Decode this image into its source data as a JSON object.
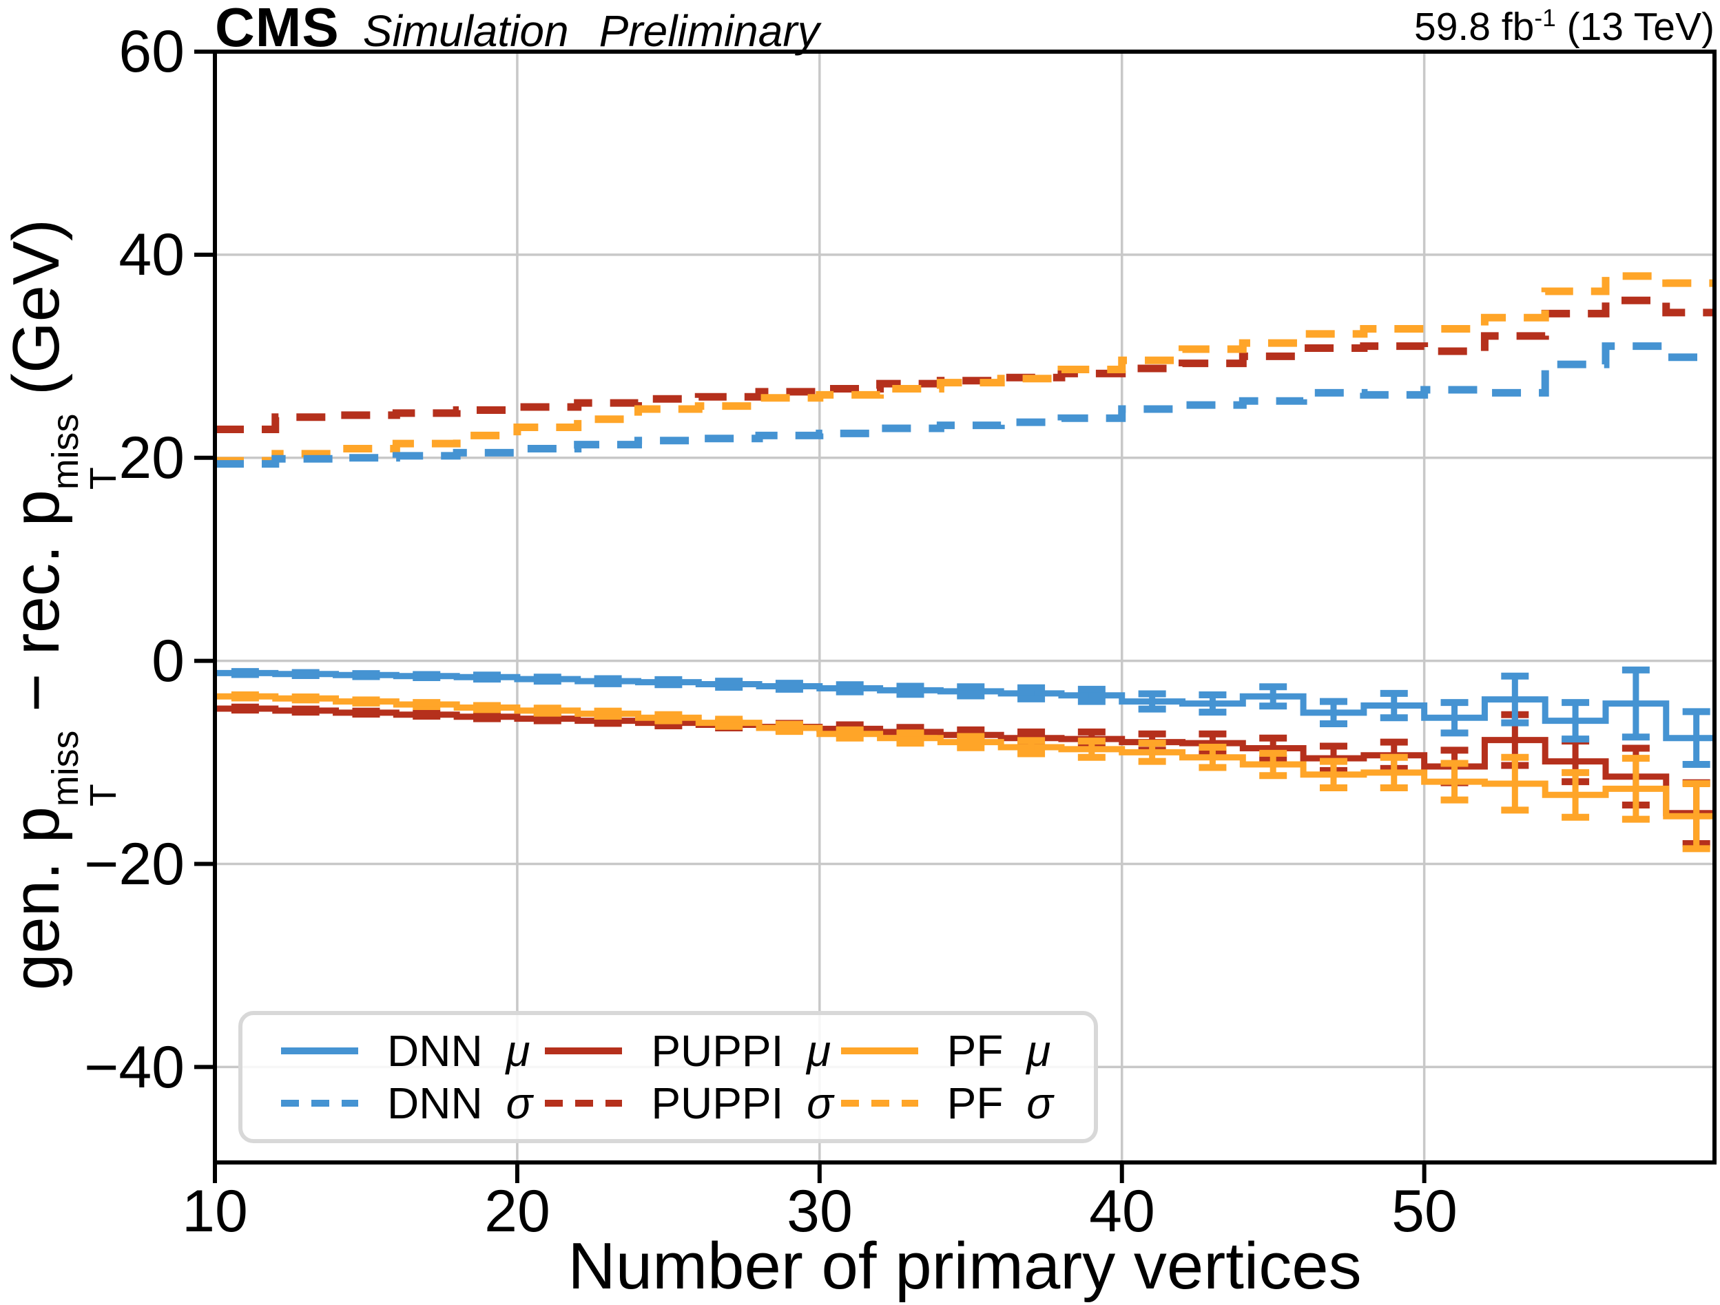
{
  "header": {
    "experiment": "CMS",
    "sim_label": "Simulation",
    "prelim_label": "Preliminary",
    "lumi_text": "59.8 fb",
    "lumi_sup": "-1",
    "energy_text": " (13 TeV)"
  },
  "ylabel_parts": {
    "pre": "gen. p",
    "sup": "miss",
    "sub": "T",
    "mid": " − rec. p",
    "post": " (GeV)"
  },
  "chart_data": {
    "type": "line",
    "subtype": "step-histogram with error bars",
    "title": "CMS Simulation Preliminary",
    "xlabel": "Number of primary vertices",
    "ylabel": "gen. pT_miss − rec. pT_miss (GeV)",
    "xlim": [
      10,
      59.6
    ],
    "ylim": [
      -49.4,
      60
    ],
    "grid": true,
    "x_ticks": [
      10,
      20,
      30,
      40,
      50
    ],
    "y_ticks": [
      60,
      40,
      20,
      0,
      -20,
      -40
    ],
    "x_tick_labels": [
      "10",
      "20",
      "30",
      "40",
      "50"
    ],
    "y_tick_labels": [
      "60",
      "40",
      "20",
      "0",
      "−20",
      "−40"
    ],
    "colors": {
      "blue": "#4593D2",
      "red": "#B5301C",
      "orange": "#FFA528",
      "grid": "#C8C8C8",
      "axis": "#000000"
    },
    "bin_edges": [
      10,
      12,
      14,
      16,
      18,
      20,
      22,
      24,
      26,
      28,
      30,
      32,
      34,
      36,
      38,
      40,
      42,
      44,
      46,
      48,
      50,
      52,
      54,
      56,
      58,
      60
    ],
    "series": [
      {
        "name": "PUPPI σ",
        "color": "#B5301C",
        "style": "dashed",
        "values": [
          22.8,
          24.0,
          24.2,
          24.4,
          24.7,
          25.0,
          25.4,
          25.8,
          26.0,
          26.5,
          26.8,
          27.3,
          27.6,
          27.9,
          28.3,
          28.8,
          29.3,
          30.0,
          30.8,
          31.0,
          30.5,
          32.0,
          34.2,
          35.5,
          34.3
        ]
      },
      {
        "name": "PF σ",
        "color": "#FFA528",
        "style": "dashed",
        "values": [
          19.7,
          20.4,
          20.9,
          21.4,
          22.2,
          23.0,
          23.8,
          24.8,
          25.1,
          25.9,
          26.2,
          26.8,
          27.4,
          27.8,
          28.7,
          29.6,
          30.7,
          31.3,
          32.2,
          32.7,
          32.7,
          33.8,
          36.4,
          37.9,
          37.2
        ]
      },
      {
        "name": "DNN σ",
        "color": "#4593D2",
        "style": "dashed",
        "values": [
          19.4,
          19.9,
          20.0,
          20.2,
          20.5,
          20.9,
          21.3,
          21.7,
          21.9,
          22.2,
          22.4,
          22.9,
          23.2,
          23.5,
          23.9,
          24.8,
          25.2,
          25.6,
          26.4,
          26.2,
          26.7,
          26.4,
          29.2,
          31.0,
          29.9
        ]
      },
      {
        "name": "PUPPI μ",
        "color": "#B5301C",
        "style": "solid",
        "values": [
          -4.7,
          -4.9,
          -5.1,
          -5.3,
          -5.5,
          -5.7,
          -5.9,
          -6.1,
          -6.3,
          -6.5,
          -6.7,
          -7.0,
          -7.3,
          -7.6,
          -7.7,
          -8.0,
          -8.1,
          -8.6,
          -9.6,
          -9.3,
          -10.4,
          -7.8,
          -9.9,
          -11.4,
          -15.0
        ],
        "errors": [
          0.15,
          0.15,
          0.15,
          0.15,
          0.2,
          0.2,
          0.25,
          0.3,
          0.3,
          0.35,
          0.4,
          0.45,
          0.5,
          0.6,
          0.7,
          0.8,
          0.9,
          1.0,
          1.2,
          1.3,
          1.6,
          2.5,
          2.0,
          2.8,
          3.0
        ]
      },
      {
        "name": "PF μ",
        "color": "#FFA528",
        "style": "solid",
        "values": [
          -3.5,
          -3.7,
          -4.0,
          -4.3,
          -4.6,
          -4.9,
          -5.2,
          -5.6,
          -6.1,
          -6.6,
          -7.2,
          -7.6,
          -8.0,
          -8.5,
          -8.7,
          -9.0,
          -9.5,
          -10.2,
          -11.2,
          -11.0,
          -11.9,
          -12.1,
          -13.2,
          -12.6,
          -15.3
        ],
        "errors": [
          0.15,
          0.15,
          0.15,
          0.2,
          0.2,
          0.25,
          0.25,
          0.3,
          0.35,
          0.35,
          0.4,
          0.5,
          0.55,
          0.65,
          0.8,
          0.9,
          1.0,
          1.1,
          1.3,
          1.5,
          1.8,
          2.6,
          2.2,
          3.0,
          3.2
        ]
      },
      {
        "name": "DNN μ",
        "color": "#4593D2",
        "style": "solid",
        "values": [
          -1.2,
          -1.3,
          -1.4,
          -1.5,
          -1.6,
          -1.8,
          -2.0,
          -2.1,
          -2.3,
          -2.5,
          -2.7,
          -2.9,
          -3.0,
          -3.2,
          -3.4,
          -4.0,
          -4.2,
          -3.5,
          -5.1,
          -4.4,
          -5.6,
          -3.8,
          -5.9,
          -4.2,
          -7.6
        ],
        "errors": [
          0.15,
          0.15,
          0.15,
          0.15,
          0.2,
          0.2,
          0.25,
          0.25,
          0.3,
          0.3,
          0.35,
          0.4,
          0.45,
          0.55,
          0.6,
          0.75,
          0.85,
          0.95,
          1.1,
          1.2,
          1.5,
          2.3,
          1.8,
          3.3,
          2.6
        ]
      }
    ],
    "legend": {
      "position": "lower left",
      "entries": [
        {
          "name": "DNN ",
          "symbol": "μ",
          "color": "#4593D2",
          "dash": false
        },
        {
          "name": "PUPPI ",
          "symbol": "μ",
          "color": "#B5301C",
          "dash": false
        },
        {
          "name": "PF ",
          "symbol": "μ",
          "color": "#FFA528",
          "dash": false
        },
        {
          "name": "DNN ",
          "symbol": "σ",
          "color": "#4593D2",
          "dash": true
        },
        {
          "name": "PUPPI ",
          "symbol": "σ",
          "color": "#B5301C",
          "dash": true
        },
        {
          "name": "PF ",
          "symbol": "σ",
          "color": "#FFA528",
          "dash": true
        }
      ]
    }
  }
}
